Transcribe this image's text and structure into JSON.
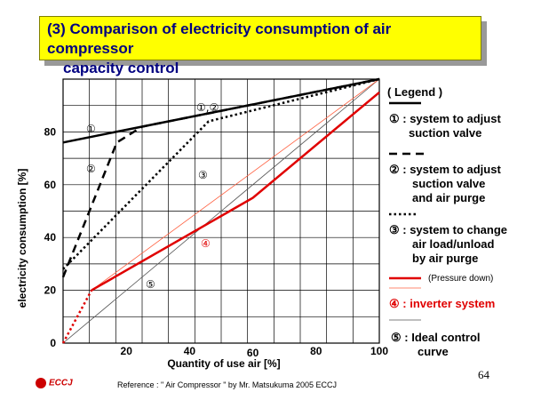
{
  "title": {
    "line1": "(3) Comparison of electricity consumption of air compressor",
    "line2": "capacity control"
  },
  "legend": {
    "heading": "( Legend )",
    "item1_line1": "① :  system to adjust",
    "item1_line2": "suction valve",
    "item2_line1": "② :  system to adjust",
    "item2_line2": "suction valve",
    "item2_line3": "and air purge",
    "item3_line1": "③ :  system to change",
    "item3_line2": "air load/unload",
    "item3_line3": "by air purge",
    "pressure_down": "(Pressure down)",
    "item4": "④ :  inverter system",
    "item5_line1": "⑤ :  Ideal control",
    "item5_line2": "curve"
  },
  "colors": {
    "title_bg": "#ffff00",
    "title_text": "#000080",
    "red": "#e00000",
    "thin_red": "#ff6040"
  },
  "chart_data": {
    "type": "line",
    "xlabel": "Quantity of use air [%]",
    "ylabel": "electricity consumption [%]",
    "xlim": [
      0,
      100
    ],
    "ylim": [
      0,
      100
    ],
    "x_ticks": [
      "20",
      "40",
      "60",
      "80",
      "100"
    ],
    "y_ticks": [
      "0",
      "20",
      "40",
      "60",
      "80"
    ],
    "grid": true,
    "annotations": [
      "①",
      "②",
      "①,②",
      "③",
      "④",
      "⑤"
    ],
    "series": [
      {
        "name": "①",
        "style": "solid-thick",
        "x": [
          0,
          100
        ],
        "y": [
          76,
          100
        ]
      },
      {
        "name": "②",
        "style": "dashed",
        "x": [
          0,
          17,
          25,
          100
        ],
        "y": [
          25,
          76,
          82,
          100
        ]
      },
      {
        "name": "③",
        "style": "dotted",
        "x": [
          0,
          46,
          100
        ],
        "y": [
          28,
          84,
          100
        ]
      },
      {
        "name": "④",
        "style": "red-thick",
        "x": [
          9,
          60,
          100
        ],
        "y": [
          20,
          55,
          95
        ]
      },
      {
        "name": "④ (low)",
        "style": "red-dotted",
        "x": [
          0,
          9
        ],
        "y": [
          0,
          20
        ]
      },
      {
        "name": "(Pressure down)",
        "style": "thin-red",
        "x": [
          9,
          100
        ],
        "y": [
          20,
          100
        ]
      },
      {
        "name": "⑤",
        "style": "thin-gray",
        "x": [
          0,
          100
        ],
        "y": [
          0,
          100
        ]
      }
    ]
  },
  "page_number": "64",
  "reference": "Reference : \" Air Compressor \" by Mr. Matsukuma  2005 ECCJ",
  "logo_text": "ECCJ"
}
